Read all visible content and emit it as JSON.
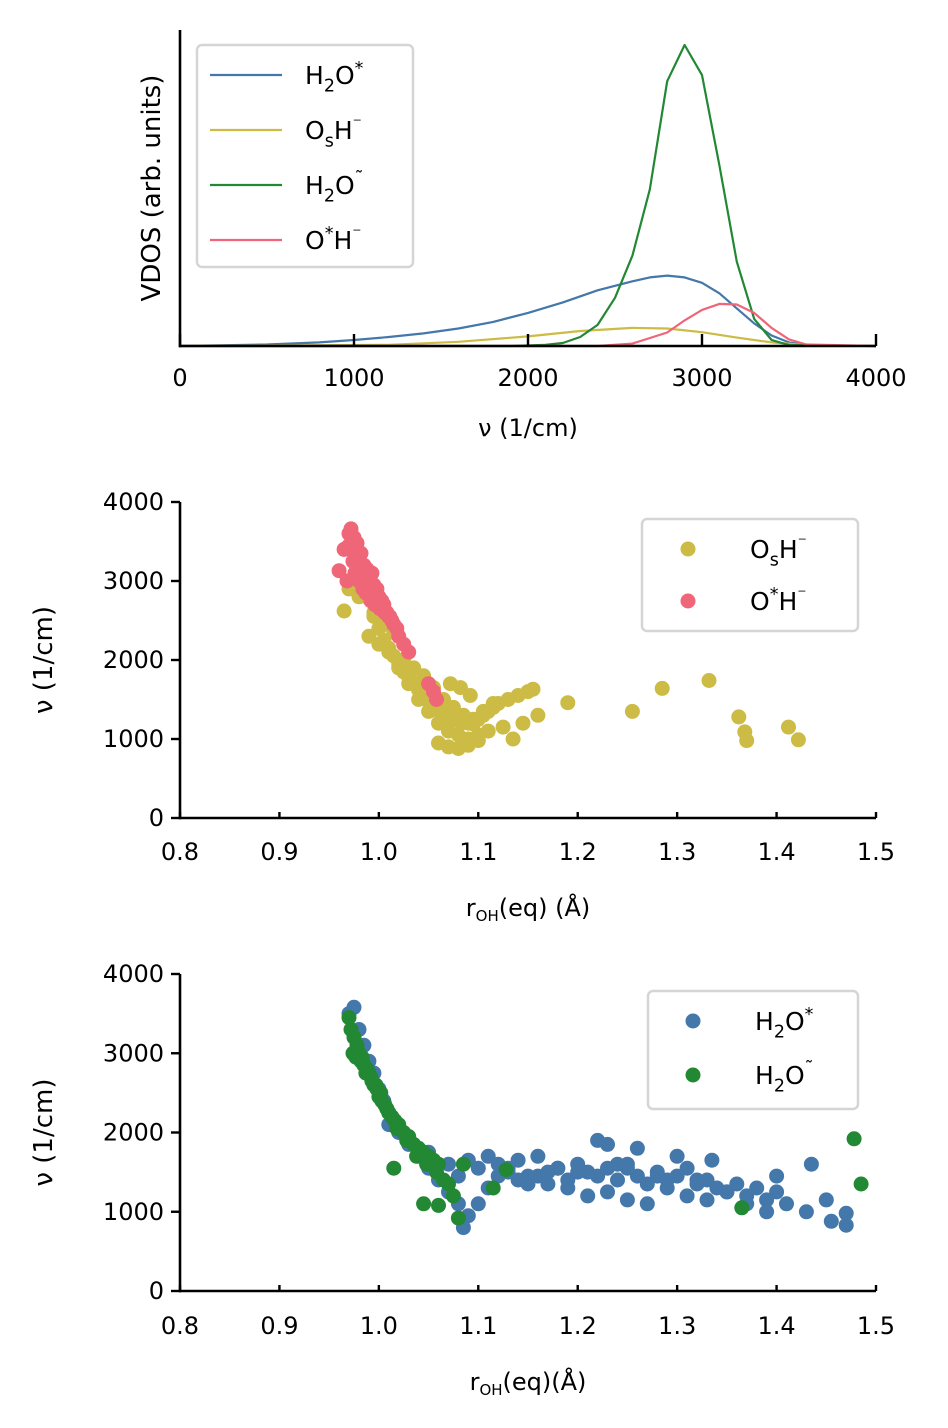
{
  "chart_data": [
    {
      "type": "line",
      "xlabel": "ν (1/cm)",
      "ylabel": "VDOS (arb. units)",
      "xlim": [
        0,
        4000
      ],
      "ylim": [
        0,
        1.05
      ],
      "x_ticks": [
        "0",
        "1000",
        "2000",
        "3000",
        "4000"
      ],
      "y_ticks_shown": false,
      "grid": false,
      "legend_position": "top-left",
      "series": [
        {
          "key": "h2o_star",
          "name": "H₂O*",
          "label_parts": [
            "H",
            "2",
            "O",
            "*"
          ],
          "color": "#4477aa",
          "x": [
            0,
            500,
            800,
            1000,
            1200,
            1400,
            1600,
            1800,
            2000,
            2200,
            2400,
            2600,
            2700,
            2800,
            2900,
            3000,
            3100,
            3200,
            3300,
            3400,
            3500,
            3600,
            4000
          ],
          "y": [
            0.0,
            0.005,
            0.012,
            0.02,
            0.03,
            0.042,
            0.058,
            0.08,
            0.11,
            0.145,
            0.185,
            0.215,
            0.228,
            0.234,
            0.228,
            0.21,
            0.175,
            0.125,
            0.075,
            0.035,
            0.012,
            0.003,
            0.0
          ]
        },
        {
          "key": "osh",
          "name": "OₛH⁻",
          "label_parts": [
            "O",
            "s",
            "H",
            "⁻"
          ],
          "color": "#ccbb44",
          "x": [
            0,
            1200,
            1600,
            2000,
            2300,
            2600,
            2800,
            3000,
            3200,
            3400,
            3600,
            4000
          ],
          "y": [
            0.0,
            0.004,
            0.014,
            0.032,
            0.05,
            0.06,
            0.058,
            0.046,
            0.028,
            0.012,
            0.003,
            0.0
          ]
        },
        {
          "key": "h2o_tilde",
          "name": "H₂O˜",
          "label_parts": [
            "H",
            "2",
            "O",
            "˜"
          ],
          "color": "#228833",
          "x": [
            0,
            1900,
            2100,
            2200,
            2300,
            2400,
            2500,
            2600,
            2700,
            2800,
            2900,
            3000,
            3100,
            3200,
            3300,
            3400,
            3500,
            4000
          ],
          "y": [
            0.0,
            0.0,
            0.004,
            0.01,
            0.03,
            0.07,
            0.16,
            0.3,
            0.52,
            0.88,
            1.0,
            0.9,
            0.6,
            0.28,
            0.09,
            0.02,
            0.003,
            0.0
          ]
        },
        {
          "key": "ostar_h",
          "name": "O*H⁻",
          "label_parts": [
            "O",
            "*",
            "H",
            "⁻"
          ],
          "color": "#ee6677",
          "x": [
            0,
            2400,
            2600,
            2800,
            2900,
            3000,
            3100,
            3200,
            3300,
            3400,
            3500,
            3600,
            4000
          ],
          "y": [
            0.0,
            0.0,
            0.008,
            0.045,
            0.085,
            0.12,
            0.14,
            0.138,
            0.11,
            0.06,
            0.022,
            0.005,
            0.0
          ]
        }
      ]
    },
    {
      "type": "scatter",
      "xlabel": "rOH(eq) (Å)",
      "xlabel_parts": [
        "r",
        "OH",
        "(eq) (Å)"
      ],
      "ylabel": "ν (1/cm)",
      "xlim": [
        0.8,
        1.5
      ],
      "ylim": [
        0,
        4000
      ],
      "x_ticks": [
        "0.8",
        "0.9",
        "1.0",
        "1.1",
        "1.2",
        "1.3",
        "1.4",
        "1.5"
      ],
      "y_ticks": [
        "0",
        "1000",
        "2000",
        "3000",
        "4000"
      ],
      "grid": false,
      "legend_position": "top-right",
      "series": [
        {
          "key": "osh",
          "name": "OₛH⁻",
          "label_parts": [
            "O",
            "s",
            "H",
            "⁻"
          ],
          "color": "#ccbb44",
          "x": [
            0.965,
            0.975,
            0.98,
            0.985,
            0.99,
            0.995,
            1.0,
            1.005,
            1.01,
            1.015,
            1.02,
            1.025,
            1.03,
            1.035,
            1.04,
            1.045,
            1.05,
            1.055,
            1.06,
            1.065,
            1.07,
            1.075,
            1.08,
            1.085,
            1.09,
            1.095,
            1.1,
            1.105,
            1.11,
            1.115,
            1.12,
            1.13,
            1.14,
            1.15,
            1.155,
            1.16,
            1.19,
            1.255,
            1.285,
            1.332,
            1.362,
            1.368,
            1.37,
            1.412,
            1.422,
            0.99,
            1.0,
            1.01,
            1.02,
            1.03,
            1.04,
            1.05,
            1.06,
            1.07,
            1.08,
            1.09,
            1.1,
            1.11,
            1.125,
            1.135,
            1.145,
            0.97,
            0.98,
            0.995,
            1.005,
            1.015,
            1.025,
            1.035,
            1.045,
            1.055,
            1.065,
            1.075,
            1.085,
            1.095,
            1.105,
            1.115,
            1.06,
            1.07,
            1.08,
            1.09,
            1.1,
            1.072,
            1.082,
            1.092
          ],
          "y": [
            2620,
            3420,
            3200,
            2950,
            2780,
            2550,
            2400,
            2250,
            2150,
            2050,
            1950,
            1850,
            1780,
            1700,
            1620,
            1550,
            1480,
            1420,
            1360,
            1320,
            1280,
            1250,
            1230,
            1210,
            1200,
            1190,
            1250,
            1300,
            1350,
            1400,
            1450,
            1500,
            1550,
            1600,
            1630,
            1300,
            1460,
            1350,
            1640,
            1740,
            1280,
            1090,
            980,
            1150,
            990,
            2300,
            2200,
            2100,
            1900,
            1700,
            1500,
            1350,
            1200,
            1100,
            1050,
            1000,
            1050,
            1100,
            1150,
            1000,
            1200,
            2900,
            2800,
            2600,
            2450,
            2350,
            2000,
            1900,
            1800,
            1650,
            1500,
            1400,
            1300,
            1250,
            1350,
            1450,
            950,
            900,
            880,
            920,
            980,
            1700,
            1650,
            1550
          ]
        },
        {
          "key": "ostar_h",
          "name": "O*H⁻",
          "label_parts": [
            "O",
            "*",
            "H",
            "⁻"
          ],
          "color": "#ee6677",
          "x": [
            0.96,
            0.965,
            0.97,
            0.972,
            0.975,
            0.978,
            0.98,
            0.982,
            0.985,
            0.988,
            0.99,
            0.993,
            0.995,
            0.998,
            1.0,
            1.003,
            1.005,
            1.008,
            1.01,
            1.013,
            1.015,
            1.018,
            1.02,
            1.025,
            1.03,
            1.05,
            1.055,
            1.058,
            0.968,
            0.974,
            0.976,
            0.98,
            0.984,
            0.987,
            0.992,
            0.996,
            1.001,
            1.006,
            1.011,
            0.97,
            0.975,
            0.979
          ],
          "y": [
            3130,
            3400,
            3600,
            3660,
            3550,
            3480,
            3300,
            3350,
            3200,
            3150,
            3050,
            3100,
            2950,
            2900,
            2800,
            2750,
            2700,
            2600,
            2550,
            2500,
            2450,
            2400,
            2300,
            2200,
            2100,
            1700,
            1600,
            1500,
            3000,
            3250,
            3100,
            3000,
            2900,
            2850,
            2750,
            2700,
            2650,
            2600,
            2550,
            3450,
            3380,
            3350
          ]
        }
      ]
    },
    {
      "type": "scatter",
      "xlabel": "rOH(eq)(Å)",
      "xlabel_parts": [
        "r",
        "OH",
        "(eq)(Å)"
      ],
      "ylabel": "ν (1/cm)",
      "xlim": [
        0.8,
        1.5
      ],
      "ylim": [
        0,
        4000
      ],
      "x_ticks": [
        "0.8",
        "0.9",
        "1.0",
        "1.1",
        "1.2",
        "1.3",
        "1.4",
        "1.5"
      ],
      "y_ticks": [
        "0",
        "1000",
        "2000",
        "3000",
        "4000"
      ],
      "grid": false,
      "legend_position": "top-right",
      "series": [
        {
          "key": "h2o_star",
          "name": "H₂O*",
          "label_parts": [
            "H",
            "2",
            "O",
            "*"
          ],
          "color": "#4477aa",
          "x": [
            0.97,
            0.975,
            0.98,
            0.985,
            0.99,
            0.995,
            1.0,
            1.005,
            1.01,
            1.015,
            1.02,
            1.03,
            1.04,
            1.05,
            1.06,
            1.07,
            1.08,
            1.085,
            1.09,
            1.1,
            1.11,
            1.12,
            1.13,
            1.14,
            1.15,
            1.16,
            1.17,
            1.18,
            1.19,
            1.2,
            1.21,
            1.22,
            1.23,
            1.24,
            1.25,
            1.26,
            1.27,
            1.28,
            1.29,
            1.3,
            1.31,
            1.32,
            1.33,
            1.34,
            1.35,
            1.36,
            1.37,
            1.38,
            1.39,
            1.4,
            1.41,
            1.43,
            1.45,
            1.455,
            1.47,
            1.47,
            1.01,
            1.03,
            1.05,
            1.07,
            1.09,
            1.11,
            1.13,
            1.15,
            1.17,
            1.19,
            1.21,
            1.23,
            1.25,
            1.27,
            1.29,
            1.31,
            1.33,
            1.35,
            1.37,
            1.39,
            1.23,
            1.26,
            1.3,
            1.335,
            1.4,
            1.435,
            1.22,
            1.25,
            1.1,
            1.12,
            1.14,
            1.16,
            1.08,
            1.18,
            1.2,
            1.24,
            1.28,
            1.32
          ],
          "y": [
            3500,
            3580,
            3300,
            3100,
            2900,
            2750,
            2550,
            2400,
            2250,
            2100,
            2000,
            1850,
            1700,
            1550,
            1400,
            1250,
            1100,
            800,
            950,
            1100,
            1300,
            1450,
            1500,
            1400,
            1350,
            1450,
            1500,
            1550,
            1400,
            1600,
            1500,
            1450,
            1550,
            1400,
            1600,
            1450,
            1350,
            1500,
            1400,
            1450,
            1550,
            1350,
            1400,
            1300,
            1250,
            1350,
            1200,
            1300,
            1150,
            1250,
            1100,
            1000,
            1150,
            880,
            980,
            830,
            2100,
            1900,
            1750,
            1600,
            1650,
            1700,
            1550,
            1450,
            1350,
            1300,
            1200,
            1250,
            1150,
            1100,
            1300,
            1200,
            1150,
            1250,
            1100,
            1000,
            1850,
            1800,
            1700,
            1650,
            1450,
            1600,
            1900,
            1550,
            1550,
            1600,
            1650,
            1700,
            1450,
            1550,
            1500,
            1600,
            1450,
            1400
          ]
        },
        {
          "key": "h2o_tilde",
          "name": "H₂O˜",
          "label_parts": [
            "H",
            "2",
            "O",
            "˜"
          ],
          "color": "#228833",
          "x": [
            0.97,
            0.972,
            0.975,
            0.978,
            0.98,
            0.983,
            0.985,
            0.988,
            0.99,
            0.993,
            0.995,
            0.998,
            1.0,
            1.003,
            1.006,
            1.01,
            1.013,
            1.016,
            1.02,
            1.025,
            1.03,
            1.035,
            1.04,
            1.045,
            1.05,
            1.055,
            1.06,
            1.065,
            1.07,
            1.075,
            1.085,
            1.045,
            1.015,
            1.06,
            1.08,
            1.115,
            1.128,
            1.365,
            1.478,
            1.485,
            0.974,
            0.977,
            0.982,
            0.987,
            0.992,
            0.997,
            1.002,
            1.008,
            1.018,
            1.028,
            1.038,
            1.048,
            1.058
          ],
          "y": [
            3450,
            3300,
            3200,
            3100,
            3000,
            2950,
            2850,
            2800,
            2750,
            2650,
            2600,
            2550,
            2450,
            2400,
            2350,
            2250,
            2200,
            2150,
            2100,
            2000,
            1950,
            1850,
            1800,
            1750,
            1700,
            1650,
            1600,
            1400,
            1350,
            1200,
            1600,
            1100,
            1550,
            1080,
            920,
            1300,
            1530,
            1050,
            1920,
            1350,
            3000,
            2950,
            2900,
            2750,
            2700,
            2600,
            2500,
            2300,
            2050,
            1900,
            1700,
            1600,
            1500
          ]
        }
      ]
    }
  ]
}
